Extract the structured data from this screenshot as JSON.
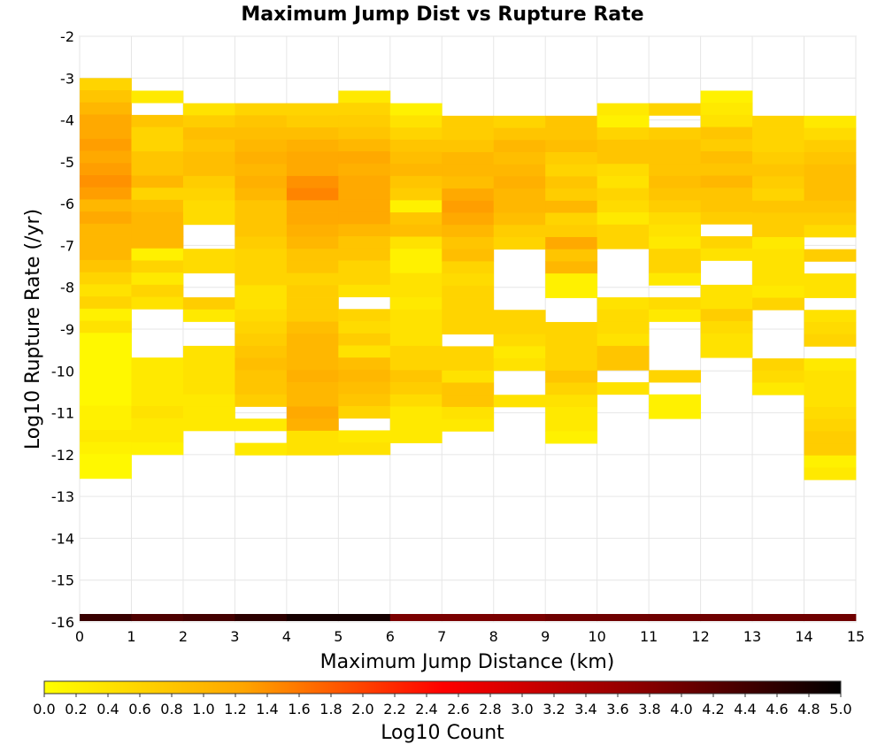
{
  "chart_data": {
    "type": "heatmap",
    "title": "Maximum Jump Dist vs Rupture Rate",
    "xlabel": "Maximum Jump Distance (km)",
    "ylabel": "Log10 Rupture Rate (/yr)",
    "xlim": [
      0,
      15
    ],
    "ylim": [
      -16,
      -2
    ],
    "x_ticks": [
      "0",
      "1",
      "2",
      "3",
      "4",
      "5",
      "6",
      "7",
      "8",
      "9",
      "10",
      "11",
      "12",
      "13",
      "14",
      "15"
    ],
    "y_ticks": [
      "-16",
      "-15",
      "-14",
      "-13",
      "-12",
      "-11",
      "-10",
      "-9",
      "-8",
      "-7",
      "-6",
      "-5",
      "-4",
      "-3",
      "-2"
    ],
    "grid": true,
    "bin_width_x": 1,
    "bin_height_y": 0.29,
    "colorbar": {
      "label": "Log10 Count",
      "min": 0.0,
      "max": 5.0,
      "ticks": [
        "0.0",
        "0.2",
        "0.4",
        "0.6",
        "0.8",
        "1.0",
        "1.2",
        "1.4",
        "1.6",
        "1.8",
        "2.0",
        "2.2",
        "2.4",
        "2.6",
        "2.8",
        "3.0",
        "3.2",
        "3.4",
        "3.6",
        "3.8",
        "4.0",
        "4.2",
        "4.4",
        "4.6",
        "4.8",
        "5.0"
      ],
      "colors": [
        "#ffff00",
        "#ffa500",
        "#ff0000",
        "#8b0000",
        "#000000"
      ]
    },
    "columns": [
      {
        "x": 0,
        "y_top": -3.0,
        "values": [
          0.6,
          0.8,
          1.0,
          1.2,
          1.2,
          1.3,
          1.2,
          1.3,
          1.4,
          1.3,
          1.0,
          1.2,
          1.0,
          1.0,
          1.0,
          0.8,
          0.6,
          0.4,
          0.6,
          0.2,
          0.4,
          0.1,
          0.1,
          0.1,
          0.1,
          0.1,
          0.1,
          0.2,
          0.2,
          0.3,
          0.2,
          0.1,
          0.1
        ],
        "bottom_value": 4.5
      },
      {
        "x": 1,
        "y_top": -3.3,
        "values": [
          0.3,
          null,
          0.8,
          0.6,
          0.6,
          0.8,
          0.8,
          1.0,
          0.6,
          0.9,
          1.0,
          1.0,
          1.0,
          0.2,
          0.6,
          0.3,
          0.6,
          0.4,
          null,
          null,
          null,
          null,
          0.3,
          0.3,
          0.3,
          0.3,
          0.4,
          0.3,
          0.3,
          0.2
        ],
        "bottom_value": 4.3
      },
      {
        "x": 2,
        "y_top": -3.6,
        "values": [
          0.4,
          0.7,
          0.9,
          0.8,
          0.9,
          0.9,
          0.7,
          0.6,
          0.5,
          0.5,
          null,
          null,
          0.5,
          0.5,
          null,
          null,
          0.7,
          0.3,
          null,
          null,
          0.4,
          0.4,
          0.4,
          0.4,
          0.3,
          0.3,
          0.3
        ],
        "bottom_value": 4.4
      },
      {
        "x": 3,
        "y_top": -3.6,
        "values": [
          0.6,
          0.8,
          0.9,
          1.0,
          1.1,
          1.0,
          1.1,
          1.0,
          0.8,
          0.8,
          0.8,
          0.7,
          0.6,
          0.6,
          0.6,
          0.4,
          0.4,
          0.5,
          0.6,
          0.7,
          0.8,
          0.9,
          0.8,
          0.8,
          0.7,
          null,
          0.3,
          null,
          0.3
        ],
        "bottom_value": 4.6
      },
      {
        "x": 4,
        "y_top": -3.6,
        "values": [
          0.6,
          0.7,
          0.9,
          1.1,
          1.2,
          1.2,
          1.4,
          1.5,
          1.2,
          1.2,
          1.1,
          1.0,
          0.8,
          0.8,
          0.6,
          0.7,
          0.7,
          0.7,
          0.9,
          1.0,
          1.0,
          1.0,
          1.1,
          1.0,
          1.0,
          1.2,
          1.1,
          0.4,
          0.4
        ],
        "bottom_value": 4.8
      },
      {
        "x": 5,
        "y_top": -3.3,
        "values": [
          0.3,
          0.6,
          0.7,
          0.8,
          1.0,
          1.2,
          1.1,
          1.2,
          1.2,
          1.2,
          1.2,
          1.0,
          0.8,
          0.8,
          0.6,
          0.6,
          0.4,
          null,
          0.6,
          0.5,
          0.7,
          0.4,
          0.9,
          1.0,
          0.9,
          0.8,
          0.6,
          null,
          0.3,
          0.4
        ],
        "bottom_value": 4.8
      },
      {
        "x": 6,
        "y_top": -3.6,
        "values": [
          0.2,
          0.4,
          0.6,
          0.8,
          0.9,
          1.0,
          0.8,
          0.7,
          0.2,
          0.8,
          0.9,
          0.4,
          0.2,
          0.2,
          0.4,
          0.4,
          0.3,
          0.4,
          0.4,
          0.4,
          0.6,
          0.6,
          0.8,
          0.7,
          0.5,
          0.3,
          0.3,
          0.3
        ],
        "bottom_value": 3.9
      },
      {
        "x": 7,
        "y_top": -3.9,
        "values": [
          0.7,
          0.7,
          0.8,
          1.0,
          1.0,
          0.9,
          1.2,
          1.3,
          1.2,
          1.0,
          0.8,
          0.9,
          0.6,
          0.5,
          0.6,
          0.6,
          0.6,
          0.6,
          null,
          0.6,
          0.6,
          0.4,
          0.8,
          0.8,
          0.4,
          0.3
        ],
        "bottom_value": 3.9
      },
      {
        "x": 8,
        "y_top": -3.9,
        "values": [
          0.6,
          0.8,
          1.0,
          0.9,
          1.0,
          1.1,
          1.0,
          1.0,
          0.9,
          0.7,
          0.6,
          null,
          null,
          null,
          null,
          null,
          0.6,
          0.6,
          0.5,
          0.3,
          0.4,
          null,
          null,
          0.4
        ],
        "bottom_value": 3.9
      },
      {
        "x": 9,
        "y_top": -3.9,
        "values": [
          0.8,
          0.8,
          0.9,
          0.7,
          0.6,
          0.8,
          0.7,
          1.0,
          0.6,
          0.7,
          1.2,
          0.8,
          1.0,
          0.2,
          0.2,
          null,
          null,
          0.6,
          0.6,
          0.6,
          0.6,
          0.8,
          0.6,
          0.4,
          0.3,
          0.3,
          0.2
        ],
        "bottom_value": 4.0
      },
      {
        "x": 10,
        "y_top": -3.6,
        "values": [
          0.3,
          0.2,
          0.6,
          0.8,
          0.8,
          0.5,
          0.4,
          0.6,
          0.5,
          0.3,
          0.6,
          0.6,
          null,
          null,
          null,
          null,
          0.4,
          0.5,
          0.5,
          0.4,
          0.8,
          0.8,
          null,
          0.4
        ],
        "bottom_value": 4.0
      },
      {
        "x": 11,
        "y_top": -3.6,
        "values": [
          0.6,
          null,
          0.7,
          0.8,
          0.8,
          0.8,
          0.9,
          0.8,
          0.7,
          0.5,
          0.4,
          0.3,
          0.6,
          0.6,
          0.3,
          null,
          0.5,
          0.3,
          null,
          null,
          null,
          null,
          0.6,
          null,
          0.2,
          0.2
        ],
        "bottom_value": 4.0
      },
      {
        "x": 12,
        "y_top": -3.3,
        "values": [
          0.2,
          0.3,
          0.4,
          0.8,
          0.7,
          0.9,
          0.8,
          1.0,
          0.8,
          0.8,
          0.7,
          null,
          0.6,
          0.4,
          null,
          null,
          0.4,
          0.4,
          0.7,
          0.5,
          0.4,
          0.4
        ],
        "bottom_value": 4.0
      },
      {
        "x": 13,
        "y_top": -3.9,
        "values": [
          0.6,
          0.6,
          0.6,
          0.7,
          0.8,
          0.7,
          0.6,
          0.8,
          0.7,
          0.7,
          0.3,
          0.4,
          0.4,
          0.4,
          0.3,
          0.6,
          null,
          null,
          null,
          null,
          0.6,
          0.5,
          0.3
        ],
        "bottom_value": 4.0
      },
      {
        "x": 14,
        "y_top": -3.9,
        "values": [
          0.3,
          0.5,
          0.7,
          0.8,
          0.9,
          0.9,
          0.9,
          0.8,
          0.7,
          0.5,
          null,
          0.7,
          null,
          0.4,
          0.4,
          null,
          0.4,
          0.5,
          0.6,
          null,
          0.3,
          0.4,
          0.4,
          0.4,
          0.5,
          0.6,
          0.7,
          0.7,
          0.2,
          0.3
        ],
        "bottom_value": 4.0
      }
    ]
  }
}
